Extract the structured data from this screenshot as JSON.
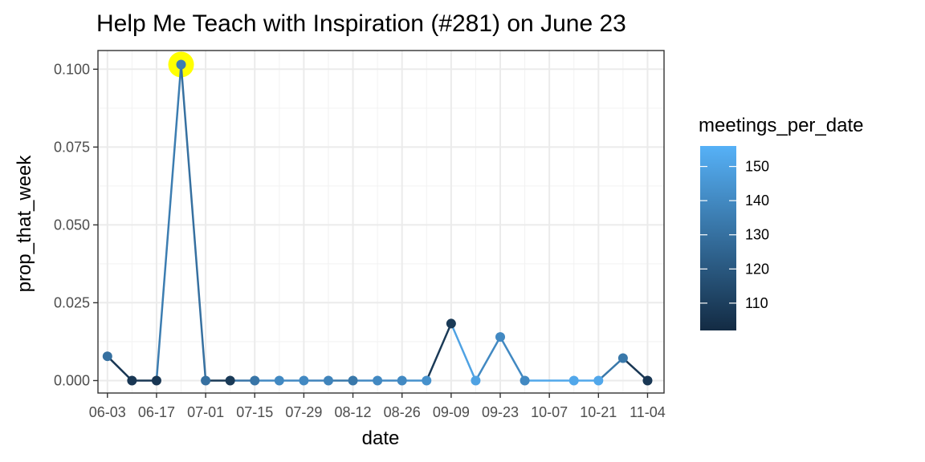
{
  "chart_data": {
    "type": "line",
    "title": "Help Me Teach with Inspiration (#281) on June 23",
    "xlabel": "date",
    "ylabel": "prop_that_week",
    "x_tick_labels": [
      "06-03",
      "06-17",
      "07-01",
      "07-15",
      "07-29",
      "08-12",
      "08-26",
      "09-09",
      "09-23",
      "10-07",
      "10-21",
      "11-04"
    ],
    "y_tick_labels": [
      "0.000",
      "0.025",
      "0.050",
      "0.075",
      "0.100"
    ],
    "ylim": [
      -0.004,
      0.106
    ],
    "xlim_day_of_year": [
      151.3,
      312.7
    ],
    "grid": true,
    "legend": {
      "title": "meetings_per_date",
      "position": "right",
      "range": [
        102,
        156
      ],
      "ticks": [
        110,
        120,
        130,
        140,
        150
      ],
      "color_low": "#132B43",
      "color_high": "#56B1F7"
    },
    "highlight": {
      "x": "06-24",
      "y": 0.1015,
      "color": "#ffff00"
    },
    "series": [
      {
        "points": [
          {
            "x": "06-03",
            "y": 0.0078,
            "meetings_per_date": 130
          },
          {
            "x": "06-10",
            "y": 0.0,
            "meetings_per_date": 107
          },
          {
            "x": "06-17",
            "y": 0.0,
            "meetings_per_date": 107
          },
          {
            "x": "06-24",
            "y": 0.1015,
            "meetings_per_date": 135
          },
          {
            "x": "07-01",
            "y": 0.0,
            "meetings_per_date": 130
          },
          {
            "x": "07-08",
            "y": 0.0,
            "meetings_per_date": 108
          },
          {
            "x": "07-15",
            "y": 0.0,
            "meetings_per_date": 132
          },
          {
            "x": "07-22",
            "y": 0.0,
            "meetings_per_date": 140
          },
          {
            "x": "07-29",
            "y": 0.0,
            "meetings_per_date": 140
          },
          {
            "x": "08-05",
            "y": 0.0,
            "meetings_per_date": 138
          },
          {
            "x": "08-12",
            "y": 0.0,
            "meetings_per_date": 133
          },
          {
            "x": "08-19",
            "y": 0.0,
            "meetings_per_date": 140
          },
          {
            "x": "08-26",
            "y": 0.0,
            "meetings_per_date": 140
          },
          {
            "x": "09-02",
            "y": 0.0,
            "meetings_per_date": 143
          },
          {
            "x": "09-09",
            "y": 0.0183,
            "meetings_per_date": 108
          },
          {
            "x": "09-16",
            "y": 0.0,
            "meetings_per_date": 150
          },
          {
            "x": "09-23",
            "y": 0.014,
            "meetings_per_date": 140
          },
          {
            "x": "09-30",
            "y": 0.0,
            "meetings_per_date": 140
          },
          {
            "x": "10-14",
            "y": 0.0,
            "meetings_per_date": 152
          },
          {
            "x": "10-21",
            "y": 0.0,
            "meetings_per_date": 152
          },
          {
            "x": "10-28",
            "y": 0.0072,
            "meetings_per_date": 133
          },
          {
            "x": "11-04",
            "y": 0.0,
            "meetings_per_date": 107
          }
        ]
      }
    ]
  }
}
